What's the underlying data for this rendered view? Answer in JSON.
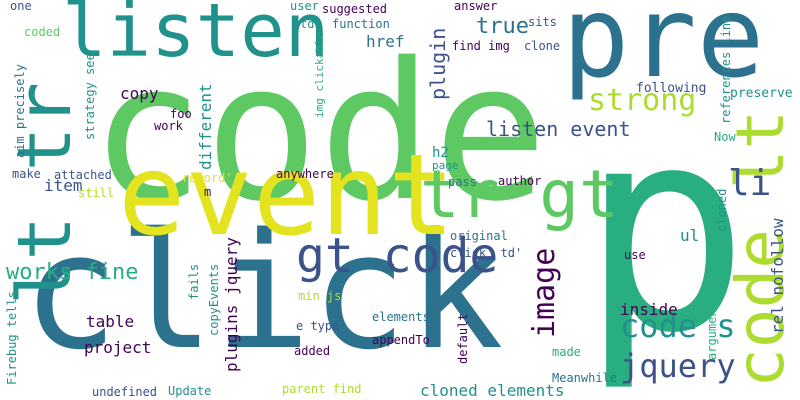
{
  "colors": {
    "background": "#ffffff",
    "palette": [
      "#440154",
      "#3b528b",
      "#2c728e",
      "#21918c",
      "#28ae80",
      "#5ec962",
      "#addc30",
      "#e3e31f"
    ]
  },
  "words": [
    {
      "text": "code",
      "color": "#5ec962"
    },
    {
      "text": "pre",
      "color": "#2c728e"
    },
    {
      "text": "p",
      "color": "#28ae80"
    },
    {
      "text": "click",
      "color": "#2c728e"
    },
    {
      "text": "event",
      "color": "#e3e31f"
    },
    {
      "text": "listen",
      "color": "#21918c"
    },
    {
      "text": "lt tr",
      "color": "#21918c"
    },
    {
      "text": "code lt",
      "color": "#addc30"
    },
    {
      "text": "tr gt",
      "color": "#5ec962"
    },
    {
      "text": "gt code",
      "color": "#3b528b"
    },
    {
      "text": "strong",
      "color": "#addc30"
    },
    {
      "text": "image",
      "color": "#440154"
    },
    {
      "text": "code s",
      "color": "#21918c"
    },
    {
      "text": "jquery",
      "color": "#3b528b"
    },
    {
      "text": "li",
      "color": "#3b528b"
    },
    {
      "text": "works fine",
      "color": "#28ae80"
    },
    {
      "text": "listen event",
      "color": "#3b528b"
    },
    {
      "text": "true",
      "color": "#2c728e"
    },
    {
      "text": "href",
      "color": "#2c728e"
    },
    {
      "text": "plugin",
      "color": "#3b528b"
    },
    {
      "text": "copy",
      "color": "#440154"
    },
    {
      "text": "item",
      "color": "#3b528b"
    },
    {
      "text": "different",
      "color": "#21918c"
    },
    {
      "text": "plugins jquery",
      "color": "#440154"
    },
    {
      "text": "table",
      "color": "#440154"
    },
    {
      "text": "project",
      "color": "#440154"
    },
    {
      "text": "cloned elements",
      "color": "#21918c"
    },
    {
      "text": "inside",
      "color": "#440154"
    },
    {
      "text": "ul",
      "color": "#21918c"
    },
    {
      "text": "rel nofollow",
      "color": "#3b528b"
    },
    {
      "text": "h2",
      "color": "#21918c"
    },
    {
      "text": "preserve",
      "color": "#21918c"
    },
    {
      "text": "following",
      "color": "#3b528b"
    },
    {
      "text": "references line",
      "color": "#21918c"
    },
    {
      "text": "Now",
      "color": "#28ae80"
    },
    {
      "text": "sits",
      "color": "#3b528b"
    },
    {
      "text": "clone",
      "color": "#3b528b"
    },
    {
      "text": "find img",
      "color": "#440154"
    },
    {
      "text": "answer",
      "color": "#440154"
    },
    {
      "text": "function",
      "color": "#2c728e"
    },
    {
      "text": "td'",
      "color": "#21918c"
    },
    {
      "text": "suggested",
      "color": "#440154"
    },
    {
      "text": "user",
      "color": "#21918c"
    },
    {
      "text": "img clickable",
      "color": "#28ae80"
    },
    {
      "text": "one",
      "color": "#3b528b"
    },
    {
      "text": "coded",
      "color": "#5ec962"
    },
    {
      "text": "aim precisely",
      "color": "#2c728e"
    },
    {
      "text": "strategy see",
      "color": "#21918c"
    },
    {
      "text": "foo",
      "color": "#440154"
    },
    {
      "text": "work",
      "color": "#440154"
    },
    {
      "text": "make",
      "color": "#3b528b"
    },
    {
      "text": "attached",
      "color": "#3b528b"
    },
    {
      "text": "still",
      "color": "#addc30"
    },
    {
      "text": "record'",
      "color": "#e3e31f"
    },
    {
      "text": "m",
      "color": "#440154"
    },
    {
      "text": "anywhere",
      "color": "#440154"
    },
    {
      "text": "page",
      "color": "#21918c"
    },
    {
      "text": "pass",
      "color": "#2c728e"
    },
    {
      "text": "author",
      "color": "#440154"
    },
    {
      "text": "original",
      "color": "#2c728e"
    },
    {
      "text": "click' td'",
      "color": "#3b528b"
    },
    {
      "text": "use",
      "color": "#440154"
    },
    {
      "text": "cloned",
      "color": "#21918c"
    },
    {
      "text": "argument",
      "color": "#28ae80"
    },
    {
      "text": "Meanwhile",
      "color": "#2c728e"
    },
    {
      "text": "made",
      "color": "#28ae80"
    },
    {
      "text": "default",
      "color": "#440154"
    },
    {
      "text": "appendTo",
      "color": "#440154"
    },
    {
      "text": "elements",
      "color": "#2c728e"
    },
    {
      "text": "added",
      "color": "#440154"
    },
    {
      "text": "e type",
      "color": "#3b528b"
    },
    {
      "text": "min js",
      "color": "#addc30"
    },
    {
      "text": "parent find",
      "color": "#addc30"
    },
    {
      "text": "Update",
      "color": "#21918c"
    },
    {
      "text": "undefined",
      "color": "#3b528b"
    },
    {
      "text": "fails",
      "color": "#21918c"
    },
    {
      "text": "copyEvents",
      "color": "#21918c"
    },
    {
      "text": "Firebug tells",
      "color": "#21918c"
    }
  ]
}
